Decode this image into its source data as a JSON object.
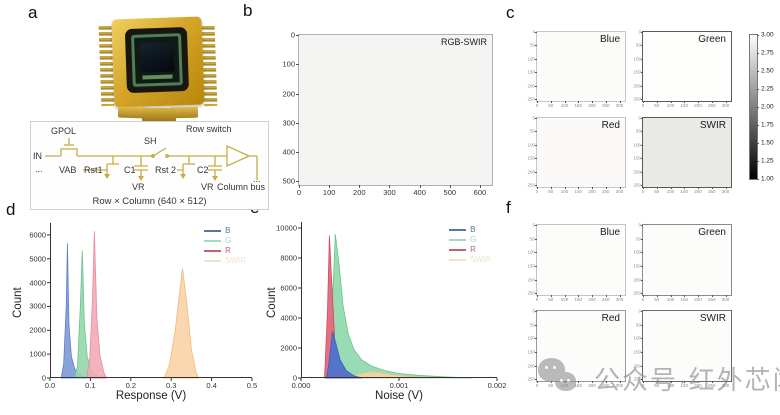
{
  "watermark": {
    "icon": "wechat-icon",
    "text": "公众号·红外芯闻"
  },
  "panels": {
    "a": {
      "label": "a",
      "caption": "Row × Column (640 × 512)",
      "schematic": {
        "gpol": "GPOL",
        "in": "IN",
        "dots_left": "...",
        "vab": "VAB",
        "rst1": "Rst1",
        "c1": "C1",
        "sh": "SH",
        "rst2": "Rst 2",
        "c2": "C2",
        "vr1": "VR",
        "vr2": "VR",
        "row_switch": "Row switch",
        "column_bus": "Column bus",
        "dots_right": "..."
      }
    },
    "b": {
      "label": "b",
      "title": "RGB-SWIR",
      "bg": "#f4f4f2",
      "border": "#b0b0b0",
      "x_ticks": [
        "0",
        "100",
        "200",
        "300",
        "400",
        "500",
        "600"
      ],
      "y_ticks": [
        "0",
        "100",
        "200",
        "300",
        "400",
        "500"
      ],
      "x_range": [
        0,
        640
      ],
      "y_range": [
        0,
        512
      ]
    },
    "c": {
      "label": "c",
      "x_ticks": [
        "0",
        "50",
        "100",
        "150",
        "200",
        "250",
        "300"
      ],
      "y_ticks": [
        "0",
        "50",
        "100",
        "150",
        "200",
        "250"
      ],
      "x_range": [
        0,
        320
      ],
      "y_range": [
        0,
        256
      ],
      "subpanels": [
        {
          "title": "Blue",
          "bg": "#fbfbf9",
          "border": "#c6c6c6"
        },
        {
          "title": "Green",
          "bg": "#fdfdfc",
          "border": "#5a5a5a"
        },
        {
          "title": "Red",
          "bg": "#faf9f7",
          "border": "#c6c6c6"
        },
        {
          "title": "SWIR",
          "bg": "#e9e9e6",
          "border": "#5a5a5a"
        }
      ],
      "colorbar": {
        "ticks": [
          "3.00",
          "2.75",
          "2.50",
          "2.25",
          "2.00",
          "1.75",
          "1.50",
          "1.25",
          "1.00"
        ],
        "top_color": "#ffffff",
        "bottom_color": "#000000"
      }
    },
    "d": {
      "label": "d"
    },
    "e": {
      "label": "e"
    },
    "f": {
      "label": "f",
      "x_ticks": [
        "0",
        "50",
        "100",
        "150",
        "200",
        "250",
        "300"
      ],
      "y_ticks": [
        "0",
        "50",
        "100",
        "150",
        "200",
        "250"
      ],
      "x_range": [
        0,
        320
      ],
      "y_range": [
        0,
        256
      ],
      "subpanels": [
        {
          "title": "Blue",
          "bg": "#fcfcfb",
          "border": "#c4c4c4"
        },
        {
          "title": "Green",
          "bg": "#fcfcfb",
          "border": "#8a8a8a"
        },
        {
          "title": "Red",
          "bg": "#fcfcfb",
          "border": "#9a9a9a"
        },
        {
          "title": "SWIR",
          "bg": "#fcfcfb",
          "border": "#6a6a6a"
        }
      ]
    }
  },
  "chart_data": [
    {
      "id": "response-histogram",
      "type": "area",
      "title": "",
      "xlabel": "Response (V)",
      "ylabel": "Count",
      "xlim": [
        0,
        0.5
      ],
      "ylim": [
        0,
        6000
      ],
      "ylim_draw": 6500,
      "x_ticks": [
        "0.0",
        "0.1",
        "0.2",
        "0.3",
        "0.4",
        "0.5"
      ],
      "y_ticks": [
        "0",
        "1000",
        "2000",
        "3000",
        "4000",
        "5000",
        "6000"
      ],
      "legend_position": "top-right",
      "grid": false,
      "draw_order": [
        0,
        1,
        2,
        3
      ],
      "series": [
        {
          "name": "B",
          "peak_x": 0.043,
          "peak_count": 5650,
          "fill": "#7c99d9",
          "stroke": "#5f7fc6",
          "opacity": 0.9,
          "legend_color": "#4d7ba3",
          "points": [
            [
              0.028,
              0
            ],
            [
              0.034,
              600
            ],
            [
              0.04,
              3000
            ],
            [
              0.043,
              5650
            ],
            [
              0.047,
              2200
            ],
            [
              0.053,
              900
            ],
            [
              0.062,
              350
            ],
            [
              0.075,
              120
            ],
            [
              0.09,
              0
            ]
          ]
        },
        {
          "name": "G",
          "peak_x": 0.08,
          "peak_count": 5350,
          "fill": "#92d7ac",
          "stroke": "#6fc18f",
          "opacity": 0.9,
          "legend_color": "#a6d8c3",
          "points": [
            [
              0.06,
              0
            ],
            [
              0.068,
              500
            ],
            [
              0.075,
              3000
            ],
            [
              0.08,
              5350
            ],
            [
              0.085,
              2300
            ],
            [
              0.092,
              900
            ],
            [
              0.102,
              350
            ],
            [
              0.115,
              120
            ],
            [
              0.128,
              0
            ]
          ]
        },
        {
          "name": "R",
          "peak_x": 0.11,
          "peak_count": 6150,
          "fill": "#f3aab6",
          "stroke": "#ea8c9c",
          "opacity": 0.9,
          "legend_color": "#c35f6e",
          "points": [
            [
              0.09,
              0
            ],
            [
              0.098,
              700
            ],
            [
              0.105,
              3200
            ],
            [
              0.11,
              6150
            ],
            [
              0.116,
              2500
            ],
            [
              0.124,
              900
            ],
            [
              0.133,
              250
            ],
            [
              0.14,
              0
            ]
          ]
        },
        {
          "name": "SWIR",
          "peak_x": 0.328,
          "peak_count": 4600,
          "fill": "#f9d3a6",
          "stroke": "#f3b87c",
          "opacity": 0.9,
          "legend_color": "#f1e3c8",
          "points": [
            [
              0.282,
              0
            ],
            [
              0.295,
              500
            ],
            [
              0.31,
              2000
            ],
            [
              0.328,
              4600
            ],
            [
              0.338,
              3200
            ],
            [
              0.35,
              1200
            ],
            [
              0.362,
              200
            ],
            [
              0.368,
              0
            ]
          ]
        }
      ]
    },
    {
      "id": "noise-histogram",
      "type": "area",
      "title": "",
      "xlabel": "Noise (V)",
      "ylabel": "Count",
      "xlim": [
        0,
        0.002
      ],
      "ylim": [
        0,
        10000
      ],
      "ylim_draw": 10400,
      "x_ticks": [
        "0.000",
        "0.001",
        "0.002"
      ],
      "y_ticks": [
        "0",
        "2000",
        "4000",
        "6000",
        "8000",
        "10000"
      ],
      "legend_position": "top-right",
      "grid": false,
      "draw_order": [
        1,
        3,
        2,
        0
      ],
      "series": [
        {
          "name": "B",
          "peak_x": 0.00032,
          "peak_count": 3100,
          "fill": "#4e72d0",
          "stroke": "#3c5cbe",
          "opacity": 0.95,
          "legend_color": "#4d7ba3",
          "points": [
            [
              0.00026,
              0
            ],
            [
              0.00029,
              1200
            ],
            [
              0.00032,
              3100
            ],
            [
              0.00036,
              2200
            ],
            [
              0.0004,
              1200
            ],
            [
              0.00046,
              500
            ],
            [
              0.00054,
              150
            ],
            [
              0.00062,
              0
            ]
          ]
        },
        {
          "name": "G",
          "peak_x": 0.00035,
          "peak_count": 9600,
          "fill": "#8ed8ab",
          "stroke": "#68c68c",
          "opacity": 0.9,
          "legend_color": "#a6d8c3",
          "points": [
            [
              0.00027,
              0
            ],
            [
              0.00031,
              3500
            ],
            [
              0.00035,
              9600
            ],
            [
              0.00039,
              7500
            ],
            [
              0.00043,
              4800
            ],
            [
              0.00048,
              3000
            ],
            [
              0.00054,
              1900
            ],
            [
              0.00062,
              1200
            ],
            [
              0.00072,
              800
            ],
            [
              0.00085,
              500
            ],
            [
              0.001,
              300
            ],
            [
              0.0012,
              180
            ],
            [
              0.00145,
              80
            ],
            [
              0.00175,
              0
            ]
          ]
        },
        {
          "name": "R",
          "peak_x": 0.00029,
          "peak_count": 9500,
          "fill": "#e06a7a",
          "stroke": "#d14b5e",
          "opacity": 0.95,
          "legend_color": "#c35f6e",
          "points": [
            [
              0.00024,
              0
            ],
            [
              0.00027,
              4500
            ],
            [
              0.00029,
              9500
            ],
            [
              0.00032,
              5500
            ],
            [
              0.00035,
              1800
            ],
            [
              0.0004,
              500
            ],
            [
              0.00047,
              120
            ],
            [
              0.00055,
              0
            ]
          ]
        },
        {
          "name": "SWIR",
          "peak_x": 0.00072,
          "peak_count": 420,
          "fill": "#f7d3a6",
          "stroke": "#efc08a",
          "opacity": 0.85,
          "legend_color": "#f1e3c8",
          "points": [
            [
              0.00042,
              0
            ],
            [
              0.00052,
              120
            ],
            [
              0.00062,
              300
            ],
            [
              0.00072,
              420
            ],
            [
              0.00082,
              350
            ],
            [
              0.00095,
              200
            ],
            [
              0.0011,
              100
            ],
            [
              0.0013,
              40
            ],
            [
              0.0015,
              0
            ]
          ]
        }
      ]
    }
  ]
}
